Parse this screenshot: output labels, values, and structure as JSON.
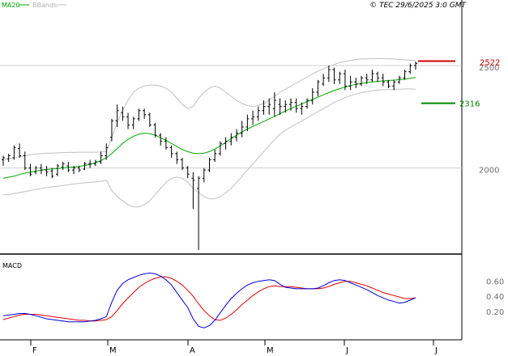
{
  "header": {
    "ma_label": "MA20",
    "bbands_label": "BBands",
    "copyright": "© TEC 29/6/2025 3:0 GMT"
  },
  "colors": {
    "ma": "#00aa00",
    "bbands": "#c0c0c0",
    "price": "#000000",
    "resistance": "#cc0000",
    "support": "#008800",
    "macd": "#0000dd",
    "signal": "#dd0000"
  },
  "chart_data": [
    {
      "type": "line",
      "title": "",
      "y_ticks": [
        2000,
        2500
      ],
      "y_tick_labels": [
        "2000",
        "2500"
      ],
      "ylim": [
        1580,
        2820
      ],
      "x_months": [
        "F",
        "M",
        "A",
        "M",
        "J",
        "J"
      ],
      "levels": [
        {
          "name": "resistance",
          "value": 2522,
          "label": "2522"
        },
        {
          "name": "support",
          "value": 2316,
          "label": "2316"
        }
      ],
      "ohlc": [
        [
          2040,
          2060,
          2010,
          2050
        ],
        [
          2045,
          2070,
          2030,
          2060
        ],
        [
          2050,
          2110,
          2040,
          2100
        ],
        [
          2095,
          2120,
          2050,
          2060
        ],
        [
          2060,
          2080,
          1990,
          2000
        ],
        [
          2000,
          2020,
          1960,
          1970
        ],
        [
          1980,
          2010,
          1970,
          2000
        ],
        [
          2000,
          2020,
          1970,
          1990
        ],
        [
          1990,
          2010,
          1960,
          1980
        ],
        [
          1985,
          2000,
          1950,
          1960
        ],
        [
          1970,
          2020,
          1960,
          2010
        ],
        [
          2005,
          2030,
          1990,
          2020
        ],
        [
          2010,
          2030,
          1980,
          1990
        ],
        [
          1990,
          2010,
          1970,
          2000
        ],
        [
          2000,
          2010,
          1980,
          1990
        ],
        [
          1995,
          2030,
          1990,
          2020
        ],
        [
          2020,
          2040,
          2000,
          2020
        ],
        [
          2020,
          2040,
          2010,
          2030
        ],
        [
          2030,
          2080,
          2020,
          2060
        ],
        [
          2060,
          2120,
          2040,
          2100
        ],
        [
          2150,
          2240,
          2130,
          2230
        ],
        [
          2230,
          2310,
          2200,
          2280
        ],
        [
          2270,
          2300,
          2230,
          2250
        ],
        [
          2250,
          2270,
          2190,
          2210
        ],
        [
          2210,
          2250,
          2190,
          2240
        ],
        [
          2240,
          2290,
          2230,
          2280
        ],
        [
          2280,
          2290,
          2240,
          2260
        ],
        [
          2260,
          2270,
          2200,
          2210
        ],
        [
          2210,
          2220,
          2150,
          2160
        ],
        [
          2160,
          2170,
          2110,
          2130
        ],
        [
          2130,
          2150,
          2090,
          2100
        ],
        [
          2100,
          2110,
          2050,
          2070
        ],
        [
          2070,
          2080,
          2020,
          2040
        ],
        [
          2040,
          2050,
          1990,
          2000
        ],
        [
          2000,
          2010,
          1950,
          1970
        ],
        [
          1950,
          1980,
          1800,
          1940
        ],
        [
          1900,
          1960,
          1600,
          1950
        ],
        [
          1950,
          2000,
          1930,
          1990
        ],
        [
          1990,
          2050,
          1980,
          2040
        ],
        [
          2040,
          2090,
          2030,
          2070
        ],
        [
          2070,
          2130,
          2060,
          2120
        ],
        [
          2120,
          2150,
          2090,
          2130
        ],
        [
          2130,
          2170,
          2110,
          2150
        ],
        [
          2150,
          2190,
          2130,
          2170
        ],
        [
          2170,
          2230,
          2150,
          2200
        ],
        [
          2200,
          2260,
          2180,
          2240
        ],
        [
          2240,
          2280,
          2210,
          2250
        ],
        [
          2250,
          2300,
          2230,
          2280
        ],
        [
          2280,
          2330,
          2260,
          2300
        ],
        [
          2300,
          2340,
          2260,
          2310
        ],
        [
          2290,
          2370,
          2250,
          2330
        ],
        [
          2310,
          2340,
          2260,
          2300
        ],
        [
          2300,
          2330,
          2270,
          2310
        ],
        [
          2310,
          2340,
          2280,
          2320
        ],
        [
          2320,
          2340,
          2270,
          2290
        ],
        [
          2290,
          2320,
          2260,
          2300
        ],
        [
          2300,
          2340,
          2290,
          2330
        ],
        [
          2330,
          2390,
          2310,
          2370
        ],
        [
          2370,
          2430,
          2350,
          2420
        ],
        [
          2410,
          2460,
          2400,
          2440
        ],
        [
          2440,
          2500,
          2420,
          2480
        ],
        [
          2480,
          2490,
          2410,
          2430
        ],
        [
          2430,
          2470,
          2410,
          2460
        ],
        [
          2460,
          2480,
          2380,
          2400
        ],
        [
          2400,
          2450,
          2380,
          2420
        ],
        [
          2420,
          2440,
          2390,
          2410
        ],
        [
          2410,
          2450,
          2400,
          2440
        ],
        [
          2440,
          2460,
          2410,
          2430
        ],
        [
          2430,
          2480,
          2420,
          2460
        ],
        [
          2460,
          2470,
          2420,
          2440
        ],
        [
          2440,
          2460,
          2400,
          2420
        ],
        [
          2420,
          2430,
          2390,
          2400
        ],
        [
          2400,
          2430,
          2380,
          2420
        ],
        [
          2420,
          2450,
          2410,
          2440
        ],
        [
          2440,
          2480,
          2430,
          2470
        ],
        [
          2470,
          2510,
          2460,
          2500
        ],
        [
          2500,
          2520,
          2480,
          2510
        ]
      ],
      "ma20": [
        1950,
        1955,
        1960,
        1968,
        1975,
        1980,
        1985,
        1990,
        1993,
        1995,
        1997,
        2000,
        2003,
        2005,
        2008,
        2012,
        2018,
        2026,
        2036,
        2050,
        2070,
        2095,
        2120,
        2140,
        2155,
        2165,
        2170,
        2168,
        2160,
        2148,
        2135,
        2120,
        2105,
        2090,
        2080,
        2072,
        2070,
        2073,
        2080,
        2092,
        2108,
        2125,
        2143,
        2160,
        2176,
        2190,
        2203,
        2215,
        2227,
        2240,
        2252,
        2265,
        2278,
        2290,
        2302,
        2313,
        2324,
        2335,
        2346,
        2357,
        2368,
        2378,
        2387,
        2395,
        2402,
        2408,
        2413,
        2417,
        2420,
        2423,
        2425,
        2427,
        2429,
        2431,
        2434,
        2438,
        2442
      ],
      "bb_upper": [
        2040,
        2045,
        2050,
        2055,
        2060,
        2065,
        2068,
        2070,
        2072,
        2073,
        2074,
        2075,
        2076,
        2076,
        2077,
        2077,
        2077,
        2077,
        2078,
        2080,
        2150,
        2220,
        2280,
        2330,
        2370,
        2390,
        2400,
        2405,
        2405,
        2400,
        2390,
        2370,
        2340,
        2310,
        2290,
        2300,
        2340,
        2370,
        2390,
        2400,
        2390,
        2370,
        2350,
        2330,
        2315,
        2305,
        2300,
        2305,
        2315,
        2330,
        2350,
        2370,
        2385,
        2400,
        2415,
        2430,
        2445,
        2460,
        2472,
        2484,
        2495,
        2505,
        2515,
        2520,
        2525,
        2530,
        2532,
        2533,
        2534,
        2534,
        2534,
        2533,
        2532,
        2530,
        2528,
        2526,
        2524
      ],
      "bb_lower": [
        1870,
        1870,
        1875,
        1880,
        1885,
        1890,
        1895,
        1900,
        1905,
        1908,
        1911,
        1914,
        1918,
        1922,
        1925,
        1928,
        1930,
        1932,
        1935,
        1940,
        1890,
        1860,
        1840,
        1820,
        1810,
        1810,
        1820,
        1840,
        1870,
        1900,
        1930,
        1950,
        1955,
        1950,
        1930,
        1900,
        1880,
        1860,
        1850,
        1850,
        1860,
        1880,
        1900,
        1930,
        1960,
        1990,
        2020,
        2050,
        2080,
        2110,
        2140,
        2165,
        2185,
        2200,
        2215,
        2230,
        2245,
        2260,
        2275,
        2290,
        2305,
        2320,
        2332,
        2343,
        2353,
        2361,
        2368,
        2373,
        2377,
        2380,
        2382,
        2383,
        2384,
        2385,
        2386,
        2386,
        2385
      ],
      "macd": [
        0.14,
        0.15,
        0.16,
        0.17,
        0.17,
        0.16,
        0.14,
        0.12,
        0.1,
        0.09,
        0.08,
        0.07,
        0.06,
        0.06,
        0.06,
        0.06,
        0.07,
        0.08,
        0.1,
        0.13,
        0.32,
        0.48,
        0.57,
        0.62,
        0.65,
        0.68,
        0.7,
        0.71,
        0.7,
        0.67,
        0.62,
        0.55,
        0.45,
        0.35,
        0.25,
        0.1,
        0.0,
        -0.02,
        0.01,
        0.08,
        0.18,
        0.28,
        0.37,
        0.44,
        0.5,
        0.55,
        0.58,
        0.6,
        0.61,
        0.62,
        0.61,
        0.56,
        0.52,
        0.51,
        0.5,
        0.5,
        0.5,
        0.5,
        0.51,
        0.54,
        0.58,
        0.61,
        0.62,
        0.61,
        0.58,
        0.55,
        0.52,
        0.49,
        0.45,
        0.41,
        0.38,
        0.35,
        0.33,
        0.31,
        0.32,
        0.35,
        0.38
      ],
      "signal": [
        0.09,
        0.11,
        0.13,
        0.15,
        0.16,
        0.16,
        0.16,
        0.15,
        0.14,
        0.13,
        0.12,
        0.11,
        0.1,
        0.09,
        0.08,
        0.08,
        0.07,
        0.07,
        0.08,
        0.09,
        0.13,
        0.21,
        0.3,
        0.38,
        0.45,
        0.52,
        0.57,
        0.61,
        0.64,
        0.66,
        0.66,
        0.64,
        0.6,
        0.55,
        0.48,
        0.4,
        0.3,
        0.21,
        0.14,
        0.09,
        0.08,
        0.11,
        0.16,
        0.22,
        0.29,
        0.35,
        0.41,
        0.46,
        0.5,
        0.53,
        0.54,
        0.53,
        0.53,
        0.53,
        0.52,
        0.51,
        0.5,
        0.5,
        0.5,
        0.51,
        0.53,
        0.56,
        0.58,
        0.6,
        0.6,
        0.58,
        0.56,
        0.54,
        0.51,
        0.48,
        0.45,
        0.43,
        0.41,
        0.39,
        0.37,
        0.37,
        0.38
      ]
    },
    {
      "type": "line",
      "title": "MACD",
      "y_ticks": [
        0.2,
        0.4,
        0.6
      ],
      "y_tick_labels": [
        "0.20",
        "0.40",
        "0.60"
      ],
      "ylim": [
        -0.18,
        0.92
      ],
      "series": [
        {
          "name": "macd",
          "color": "#0000dd"
        },
        {
          "name": "signal",
          "color": "#dd0000"
        }
      ]
    }
  ]
}
